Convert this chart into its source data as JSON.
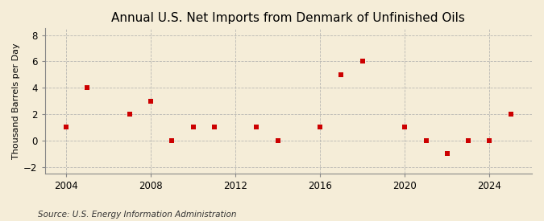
{
  "title": "Annual U.S. Net Imports from Denmark of Unfinished Oils",
  "ylabel": "Thousand Barrels per Day",
  "source": "Source: U.S. Energy Information Administration",
  "background_color": "#f5edd8",
  "years": [
    2004,
    2005,
    2007,
    2008,
    2009,
    2010,
    2011,
    2013,
    2014,
    2016,
    2017,
    2018,
    2020,
    2021,
    2022,
    2023,
    2024,
    2025
  ],
  "values": [
    1,
    4,
    2,
    3,
    0,
    1,
    1,
    1,
    0,
    1,
    5,
    6,
    1,
    0,
    -1,
    0,
    0,
    2
  ],
  "marker_color": "#cc0000",
  "marker": "s",
  "marker_size": 4,
  "xlim": [
    2003.0,
    2026.0
  ],
  "ylim": [
    -2.5,
    8.5
  ],
  "yticks": [
    -2,
    0,
    2,
    4,
    6,
    8
  ],
  "xticks": [
    2004,
    2008,
    2012,
    2016,
    2020,
    2024
  ],
  "grid_color": "#aaaaaa",
  "grid_style": "--",
  "grid_alpha": 0.8,
  "title_fontsize": 11,
  "label_fontsize": 8,
  "tick_fontsize": 8.5,
  "source_fontsize": 7.5
}
